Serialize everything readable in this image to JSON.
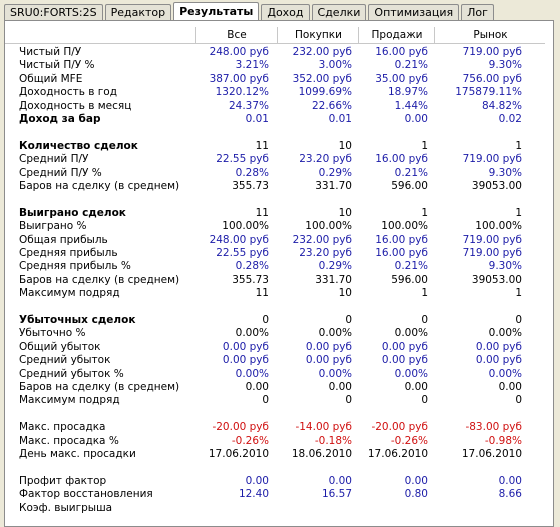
{
  "tabs": [
    "SRU0:FORTS:2S",
    "Редактор",
    "Результаты",
    "Доход",
    "Сделки",
    "Оптимизация",
    "Лог"
  ],
  "active_tab": 2,
  "columns": [
    "Все",
    "Покупки",
    "Продажи",
    "Рынок"
  ],
  "sections": [
    {
      "rows": [
        {
          "label": "Чистый П/У",
          "color": "#1c1ca8",
          "values": [
            "248.00 руб",
            "232.00 руб",
            "16.00 руб",
            "719.00 руб"
          ]
        },
        {
          "label": "Чистый П/У %",
          "color": "#1c1ca8",
          "values": [
            "3.21%",
            "3.00%",
            "0.21%",
            "9.30%"
          ]
        },
        {
          "label": "Общий MFE",
          "color": "#1c1ca8",
          "values": [
            "387.00 руб",
            "352.00 руб",
            "35.00 руб",
            "756.00 руб"
          ]
        },
        {
          "label": "Доходность в год",
          "color": "#1c1ca8",
          "values": [
            "1320.12%",
            "1099.69%",
            "18.97%",
            "175879.11%"
          ]
        },
        {
          "label": "Доходность в месяц",
          "color": "#1c1ca8",
          "values": [
            "24.37%",
            "22.66%",
            "1.44%",
            "84.82%"
          ]
        },
        {
          "label": "Доход за бар",
          "bold": true,
          "color": "#1c1ca8",
          "values": [
            "0.01",
            "0.01",
            "0.00",
            "0.02"
          ]
        }
      ]
    },
    {
      "rows": [
        {
          "label": "Количество сделок",
          "bold": true,
          "color": "#000000",
          "values": [
            "11",
            "10",
            "1",
            "1"
          ]
        },
        {
          "label": "Средний П/У",
          "color": "#1c1ca8",
          "values": [
            "22.55 руб",
            "23.20 руб",
            "16.00 руб",
            "719.00 руб"
          ]
        },
        {
          "label": "Средний П/У %",
          "color": "#1c1ca8",
          "values": [
            "0.28%",
            "0.29%",
            "0.21%",
            "9.30%"
          ]
        },
        {
          "label": "Баров на сделку (в среднем)",
          "color": "#000000",
          "values": [
            "355.73",
            "331.70",
            "596.00",
            "39053.00"
          ]
        }
      ]
    },
    {
      "rows": [
        {
          "label": "Выиграно сделок",
          "bold": true,
          "color": "#000000",
          "values": [
            "11",
            "10",
            "1",
            "1"
          ]
        },
        {
          "label": "Выиграно %",
          "color": "#000000",
          "values": [
            "100.00%",
            "100.00%",
            "100.00%",
            "100.00%"
          ]
        },
        {
          "label": "Общая прибыль",
          "color": "#1c1ca8",
          "values": [
            "248.00 руб",
            "232.00 руб",
            "16.00 руб",
            "719.00 руб"
          ]
        },
        {
          "label": "Средняя прибыль",
          "color": "#1c1ca8",
          "values": [
            "22.55 руб",
            "23.20 руб",
            "16.00 руб",
            "719.00 руб"
          ]
        },
        {
          "label": "Средняя прибыль %",
          "color": "#1c1ca8",
          "values": [
            "0.28%",
            "0.29%",
            "0.21%",
            "9.30%"
          ]
        },
        {
          "label": "Баров на сделку (в среднем)",
          "color": "#000000",
          "values": [
            "355.73",
            "331.70",
            "596.00",
            "39053.00"
          ]
        },
        {
          "label": "Максимум подряд",
          "color": "#000000",
          "values": [
            "11",
            "10",
            "1",
            "1"
          ]
        }
      ]
    },
    {
      "rows": [
        {
          "label": "Убыточных сделок",
          "bold": true,
          "color": "#000000",
          "values": [
            "0",
            "0",
            "0",
            "0"
          ]
        },
        {
          "label": "Убыточно %",
          "color": "#000000",
          "values": [
            "0.00%",
            "0.00%",
            "0.00%",
            "0.00%"
          ]
        },
        {
          "label": "Общий убыток",
          "color": "#1c1ca8",
          "values": [
            "0.00 руб",
            "0.00 руб",
            "0.00 руб",
            "0.00 руб"
          ]
        },
        {
          "label": "Средний убыток",
          "color": "#1c1ca8",
          "values": [
            "0.00 руб",
            "0.00 руб",
            "0.00 руб",
            "0.00 руб"
          ]
        },
        {
          "label": "Средний убыток %",
          "color": "#1c1ca8",
          "values": [
            "0.00%",
            "0.00%",
            "0.00%",
            "0.00%"
          ]
        },
        {
          "label": "Баров на сделку (в среднем)",
          "color": "#000000",
          "values": [
            "0.00",
            "0.00",
            "0.00",
            "0.00"
          ]
        },
        {
          "label": "Максимум подряд",
          "color": "#000000",
          "values": [
            "0",
            "0",
            "0",
            "0"
          ]
        }
      ]
    },
    {
      "rows": [
        {
          "label": "Макс. просадка",
          "color": "#d01010",
          "values": [
            "-20.00 руб",
            "-14.00 руб",
            "-20.00 руб",
            "-83.00 руб"
          ]
        },
        {
          "label": "Макс. просадка %",
          "color": "#d01010",
          "values": [
            "-0.26%",
            "-0.18%",
            "-0.26%",
            "-0.98%"
          ]
        },
        {
          "label": "День макс. просадки",
          "color": "#000000",
          "values": [
            "17.06.2010",
            "18.06.2010",
            "17.06.2010",
            "17.06.2010"
          ]
        }
      ]
    },
    {
      "rows": [
        {
          "label": "Профит фактор",
          "color": "#1c1ca8",
          "values": [
            "0.00",
            "0.00",
            "0.00",
            "0.00"
          ]
        },
        {
          "label": "Фактор восстановления",
          "color": "#1c1ca8",
          "values": [
            "12.40",
            "16.57",
            "0.80",
            "8.66"
          ]
        },
        {
          "label": "Коэф. выигрыша",
          "color": "#1c1ca8",
          "values": []
        }
      ]
    }
  ]
}
